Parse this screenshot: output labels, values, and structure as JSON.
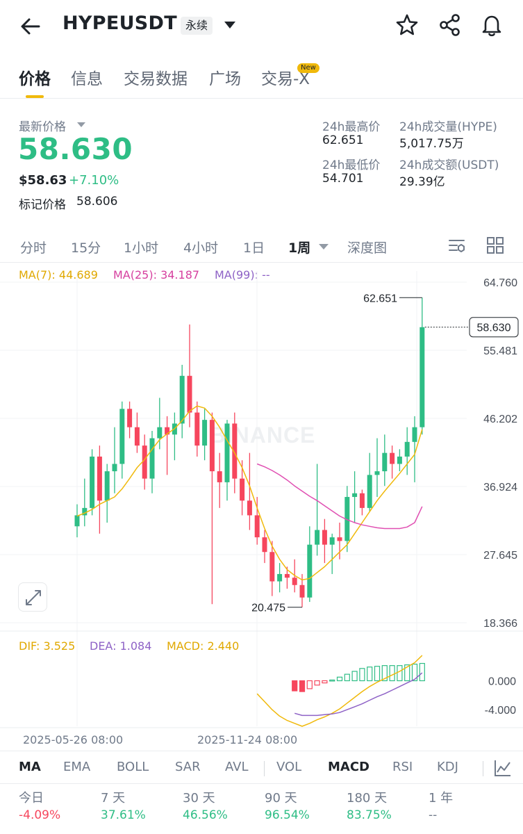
{
  "header": {
    "symbol": "HYPEUSDT",
    "contract_type": "永续",
    "icons": [
      "back-arrow-icon",
      "chevron-down-icon",
      "star-icon",
      "share-icon",
      "bell-icon"
    ]
  },
  "tabs": [
    {
      "label": "价格",
      "active": true
    },
    {
      "label": "信息"
    },
    {
      "label": "交易数据"
    },
    {
      "label": "广场"
    },
    {
      "label": "交易-X",
      "badge": "New"
    }
  ],
  "price": {
    "latest_label": "最新价格",
    "last": "58.630",
    "usd": "$58.63",
    "change_pct": "+7.10%",
    "mark_label": "标记价格",
    "mark_value": "58.606"
  },
  "stats": {
    "high_label": "24h最高价",
    "high": "62.651",
    "low_label": "24h最低价",
    "low": "54.701",
    "vol_label": "24h成交量(HYPE)",
    "vol": "5,017.75万",
    "turnover_label": "24h成交额(USDT)",
    "turnover": "29.39亿"
  },
  "intervals": [
    "分时",
    "15分",
    "1小时",
    "4小时",
    "1日",
    "1周",
    "深度图"
  ],
  "active_interval": "1周",
  "ma_legend": {
    "ma7": "MA(7): 44.689",
    "ma25": "MA(25): 34.187",
    "ma99": "MA(99): --"
  },
  "colors": {
    "up": "#2ebd85",
    "down": "#f6465d",
    "ma7": "#f0b90b",
    "ma25": "#e04fb2",
    "ma99": "#8e62c6",
    "accent": "#f0b90b"
  },
  "y_axis": [
    "64.760",
    "55.481",
    "46.202",
    "36.924",
    "27.645",
    "18.366"
  ],
  "price_tag": "58.630",
  "high_marker": "62.651",
  "low_marker": "20.475",
  "watermark": "BINANCE",
  "macd_legend": {
    "dif": "DIF: 3.525",
    "dea": "DEA: 1.084",
    "macd": "MACD: 2.440"
  },
  "macd_axis": [
    "0.000",
    "-4.000"
  ],
  "x_dates": [
    "2025-05-26 08:00",
    "2025-11-24 08:00"
  ],
  "indicators": [
    "MA",
    "EMA",
    "BOLL",
    "SAR",
    "AVL",
    "VOL",
    "MACD",
    "RSI",
    "KDJ"
  ],
  "performance": [
    {
      "label": "今日",
      "value": "-4.09%",
      "dir": "down"
    },
    {
      "label": "7 天",
      "value": "37.61%",
      "dir": "up"
    },
    {
      "label": "30 天",
      "value": "46.56%",
      "dir": "up"
    },
    {
      "label": "90 天",
      "value": "96.54%",
      "dir": "up"
    },
    {
      "label": "180 天",
      "value": "83.75%",
      "dir": "up"
    },
    {
      "label": "1 年",
      "value": "--",
      "dir": "none"
    }
  ],
  "chart_data": {
    "type": "candlestick",
    "y_range": [
      18.366,
      64.76
    ],
    "candles": [
      {
        "o": 31.5,
        "h": 34.5,
        "l": 30.0,
        "c": 33.0
      },
      {
        "o": 33.0,
        "h": 38.0,
        "l": 31.5,
        "c": 34.0
      },
      {
        "o": 34.0,
        "h": 42.0,
        "l": 33.0,
        "c": 41.0
      },
      {
        "o": 41.0,
        "h": 42.5,
        "l": 30.5,
        "c": 35.0
      },
      {
        "o": 35.0,
        "h": 40.0,
        "l": 32.0,
        "c": 39.0
      },
      {
        "o": 39.0,
        "h": 45.0,
        "l": 36.0,
        "c": 40.0
      },
      {
        "o": 40.0,
        "h": 48.5,
        "l": 38.0,
        "c": 47.5
      },
      {
        "o": 47.5,
        "h": 48.5,
        "l": 43.5,
        "c": 45.0
      },
      {
        "o": 45.0,
        "h": 47.0,
        "l": 41.5,
        "c": 42.5
      },
      {
        "o": 42.5,
        "h": 44.0,
        "l": 36.5,
        "c": 38.0
      },
      {
        "o": 38.0,
        "h": 44.5,
        "l": 36.0,
        "c": 43.5
      },
      {
        "o": 43.5,
        "h": 49.0,
        "l": 42.0,
        "c": 45.0
      },
      {
        "o": 45.0,
        "h": 46.5,
        "l": 38.5,
        "c": 44.0
      },
      {
        "o": 44.0,
        "h": 47.0,
        "l": 40.5,
        "c": 45.5
      },
      {
        "o": 45.5,
        "h": 53.5,
        "l": 43.5,
        "c": 52.0
      },
      {
        "o": 52.0,
        "h": 59.0,
        "l": 45.0,
        "c": 47.0
      },
      {
        "o": 47.0,
        "h": 48.5,
        "l": 41.0,
        "c": 42.5
      },
      {
        "o": 42.5,
        "h": 47.5,
        "l": 40.5,
        "c": 46.0
      },
      {
        "o": 46.0,
        "h": 47.0,
        "l": 20.9,
        "c": 39.0
      },
      {
        "o": 39.0,
        "h": 41.5,
        "l": 34.0,
        "c": 37.5
      },
      {
        "o": 37.5,
        "h": 46.0,
        "l": 35.0,
        "c": 45.5
      },
      {
        "o": 45.5,
        "h": 47.0,
        "l": 36.0,
        "c": 38.0
      },
      {
        "o": 38.0,
        "h": 40.5,
        "l": 33.0,
        "c": 35.0
      },
      {
        "o": 35.0,
        "h": 41.5,
        "l": 31.0,
        "c": 33.0
      },
      {
        "o": 33.0,
        "h": 35.5,
        "l": 29.0,
        "c": 30.0
      },
      {
        "o": 30.0,
        "h": 31.0,
        "l": 26.5,
        "c": 28.0
      },
      {
        "o": 28.0,
        "h": 29.5,
        "l": 22.0,
        "c": 24.0
      },
      {
        "o": 24.0,
        "h": 26.5,
        "l": 22.5,
        "c": 25.0
      },
      {
        "o": 25.0,
        "h": 26.0,
        "l": 23.0,
        "c": 24.5
      },
      {
        "o": 24.5,
        "h": 27.0,
        "l": 22.5,
        "c": 23.5
      },
      {
        "o": 23.5,
        "h": 25.0,
        "l": 20.475,
        "c": 21.8
      },
      {
        "o": 21.8,
        "h": 31.5,
        "l": 21.2,
        "c": 29.0
      },
      {
        "o": 29.0,
        "h": 40.0,
        "l": 27.5,
        "c": 31.0
      },
      {
        "o": 31.0,
        "h": 32.5,
        "l": 26.5,
        "c": 29.0
      },
      {
        "o": 29.0,
        "h": 30.5,
        "l": 25.0,
        "c": 30.0
      },
      {
        "o": 30.0,
        "h": 32.0,
        "l": 27.0,
        "c": 29.5
      },
      {
        "o": 29.5,
        "h": 37.0,
        "l": 28.0,
        "c": 35.5
      },
      {
        "o": 35.5,
        "h": 39.0,
        "l": 32.0,
        "c": 36.0
      },
      {
        "o": 36.0,
        "h": 36.5,
        "l": 33.0,
        "c": 34.0
      },
      {
        "o": 34.0,
        "h": 41.5,
        "l": 33.5,
        "c": 38.5
      },
      {
        "o": 38.5,
        "h": 43.5,
        "l": 35.5,
        "c": 39.0
      },
      {
        "o": 39.0,
        "h": 44.0,
        "l": 37.0,
        "c": 41.5
      },
      {
        "o": 41.5,
        "h": 42.5,
        "l": 38.0,
        "c": 40.0
      },
      {
        "o": 40.0,
        "h": 42.0,
        "l": 39.0,
        "c": 41.0
      },
      {
        "o": 41.0,
        "h": 45.0,
        "l": 38.5,
        "c": 43.0
      },
      {
        "o": 43.0,
        "h": 46.5,
        "l": 37.5,
        "c": 45.0
      },
      {
        "o": 45.0,
        "h": 62.651,
        "l": 44.0,
        "c": 58.63
      }
    ],
    "ma7": [
      32.9,
      33.3,
      33.8,
      34.5,
      35.0,
      35.5,
      36.6,
      38.0,
      39.5,
      40.6,
      42.0,
      43.3,
      44.1,
      44.8,
      45.9,
      47.2,
      47.9,
      47.6,
      46.5,
      45.0,
      43.2,
      41.5,
      39.5,
      37.0,
      34.0,
      31.2,
      28.8,
      27.0,
      25.6,
      24.8,
      24.2,
      24.4,
      25.2,
      26.0,
      27.0,
      28.0,
      29.0,
      30.5,
      32.0,
      33.5,
      35.0,
      36.3,
      37.5,
      38.7,
      40.0,
      41.3,
      44.7
    ],
    "ma25": [
      null,
      null,
      null,
      null,
      null,
      null,
      null,
      null,
      null,
      null,
      null,
      null,
      null,
      null,
      null,
      null,
      null,
      null,
      null,
      null,
      null,
      null,
      null,
      null,
      40.0,
      39.6,
      39.1,
      38.5,
      37.8,
      37.0,
      36.3,
      35.6,
      35.0,
      34.3,
      33.6,
      32.9,
      32.4,
      32.0,
      31.7,
      31.5,
      31.3,
      31.2,
      31.2,
      31.2,
      31.4,
      32.0,
      34.2
    ],
    "macd": {
      "dif": [
        null,
        null,
        null,
        null,
        null,
        null,
        null,
        null,
        null,
        null,
        null,
        null,
        null,
        null,
        null,
        null,
        null,
        null,
        null,
        null,
        null,
        null,
        null,
        null,
        -1.8,
        -2.9,
        -4.0,
        -4.9,
        -5.5,
        -5.9,
        -6.3,
        -5.9,
        -5.4,
        -5.0,
        -4.5,
        -3.9,
        -3.1,
        -2.3,
        -1.5,
        -0.8,
        -0.2,
        0.3,
        0.8,
        1.3,
        1.9,
        2.5,
        3.5
      ],
      "dea": [
        null,
        null,
        null,
        null,
        null,
        null,
        null,
        null,
        null,
        null,
        null,
        null,
        null,
        null,
        null,
        null,
        null,
        null,
        null,
        null,
        null,
        null,
        null,
        null,
        null,
        null,
        null,
        null,
        null,
        -4.5,
        -4.8,
        -4.8,
        -4.8,
        -4.7,
        -4.6,
        -4.4,
        -4.0,
        -3.6,
        -3.2,
        -2.7,
        -2.2,
        -1.8,
        -1.3,
        -0.8,
        -0.3,
        0.2,
        1.1
      ],
      "hist": [
        null,
        null,
        null,
        null,
        null,
        null,
        null,
        null,
        null,
        null,
        null,
        null,
        null,
        null,
        null,
        null,
        null,
        null,
        null,
        null,
        null,
        null,
        null,
        null,
        null,
        null,
        null,
        null,
        null,
        -1.4,
        -1.5,
        -1.1,
        -0.6,
        -0.3,
        0.1,
        0.5,
        0.9,
        1.3,
        1.7,
        1.9,
        2.0,
        2.1,
        2.1,
        2.1,
        2.2,
        2.3,
        2.4
      ]
    },
    "macd_range": [
      -6.4,
      3.8
    ]
  }
}
